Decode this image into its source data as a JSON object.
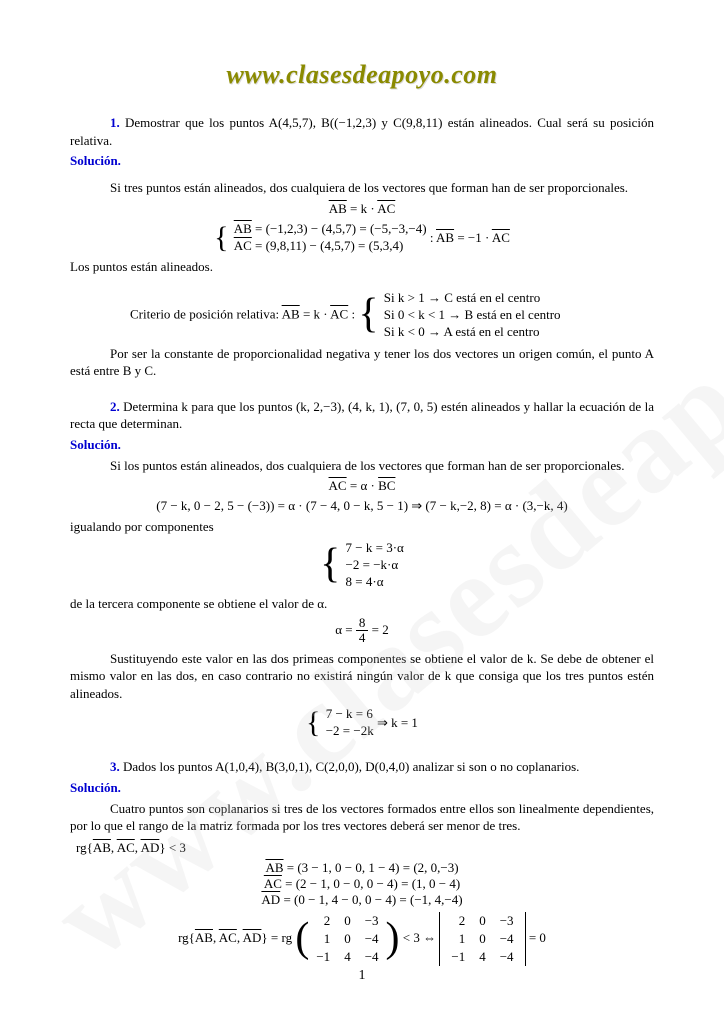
{
  "header": {
    "logo_text": "www.clasesdeapoyo.com"
  },
  "watermark": "www.clasesdeapoyo.com",
  "pagenum": "1",
  "colors": {
    "accent": "#0000d0",
    "logo": "#8a8a00",
    "watermark": "rgba(200,200,200,0.18)",
    "text": "#000"
  },
  "p1": {
    "num": "1.",
    "text_a": " Demostrar que los puntos A(4,5,7), B((−1,2,3) y C(9,8,11) están alineados. Cual será su posición relativa.",
    "sol": "Solución.",
    "line1": "Si tres puntos están alineados, dos cualquiera de los vectores que forman han de ser proporcionales.",
    "eq1": "AB = k · AC",
    "sys_l1": "AB = (−1,2,3) − (4,5,7) = (−5,−3,−4)",
    "sys_l2": "AC = (9,8,11) − (4,5,7) = (5,3,4)",
    "sys_after": ": AB = −1 · AC",
    "line2": "Los puntos están alineados.",
    "crit_label": "Criterio de posición relativa:  ",
    "crit_eq": "AB = k · AC : ",
    "crit_r1": "Si    k > 1  →  C  está en el centro",
    "crit_r2": "Si    0 < k < 1  →  B  está en el centro",
    "crit_r3": "Si    k < 0  →  A  está en el centro",
    "line3": "Por ser la constante de proporcionalidad negativa y tener los dos vectores un origen común, el punto A está entre B y C."
  },
  "p2": {
    "num": "2.",
    "text_a": " Determina k para que los puntos (k, 2,−3), (4, k, 1), (7, 0, 5) estén alineados y hallar la ecuación de la recta que determinan.",
    "sol": "Solución.",
    "line1": "Si los puntos están alineados, dos cualquiera de los vectores que forman han de ser proporcionales.",
    "eq1": "AC = α · BC",
    "eq2": "(7 − k, 0 − 2, 5 − (−3)) = α · (7 − 4, 0 − k, 5 − 1) ⇒ (7 − k,−2, 8) = α · (3,−k, 4)",
    "line2": "igualando por componentes",
    "sys2_l1": "7 − k = 3·α",
    "sys2_l2": "−2 = −k·α",
    "sys2_l3": "8 = 4·α",
    "line3": "de la tercera componente se obtiene el valor de α.",
    "eq3_pre": "α = ",
    "eq3_num": "8",
    "eq3_den": "4",
    "eq3_post": " = 2",
    "line4": "Sustituyendo este valor en las dos primeas componentes se obtiene el valor de k. Se debe de obtener el mismo valor en las dos, en caso contrario no existirá ningún valor de k que consiga que los tres puntos estén alineados.",
    "sys3_l1": "7 − k = 6",
    "sys3_l2": "−2 = −2k",
    "sys3_post": " ⇒ k = 1"
  },
  "p3": {
    "num": "3.",
    "text_a": " Dados los puntos A(1,0,4), B(3,0,1), C(2,0,0), D(0,4,0) analizar si son o no coplanarios.",
    "sol": "Solución.",
    "line1": "Cuatro puntos son coplanarios si tres de los vectores formados entre ellos son linealmente dependientes, por lo que el rango de la matriz formada por los tres vectores deberá ser menor de tres.",
    "rg_cond": "rg{AB, AC, AD} < 3",
    "v1": "AB = (3 − 1, 0 − 0, 1 − 4) = (2, 0,−3)",
    "v2": "AC = (2 − 1, 0 − 0, 0 − 4) = (1, 0 − 4)",
    "v3": "AD = (0 − 1, 4 − 0, 0 − 4) = (−1, 4,−4)",
    "rg_label": "rg{AB, AC, AD} = rg",
    "matrix": {
      "rows": [
        [
          "2",
          "0",
          "−3"
        ],
        [
          "1",
          "0",
          "−4"
        ],
        [
          "−1",
          "4",
          "−4"
        ]
      ]
    },
    "mid": " < 3 ⇔ ",
    "det_post": " = 0"
  }
}
